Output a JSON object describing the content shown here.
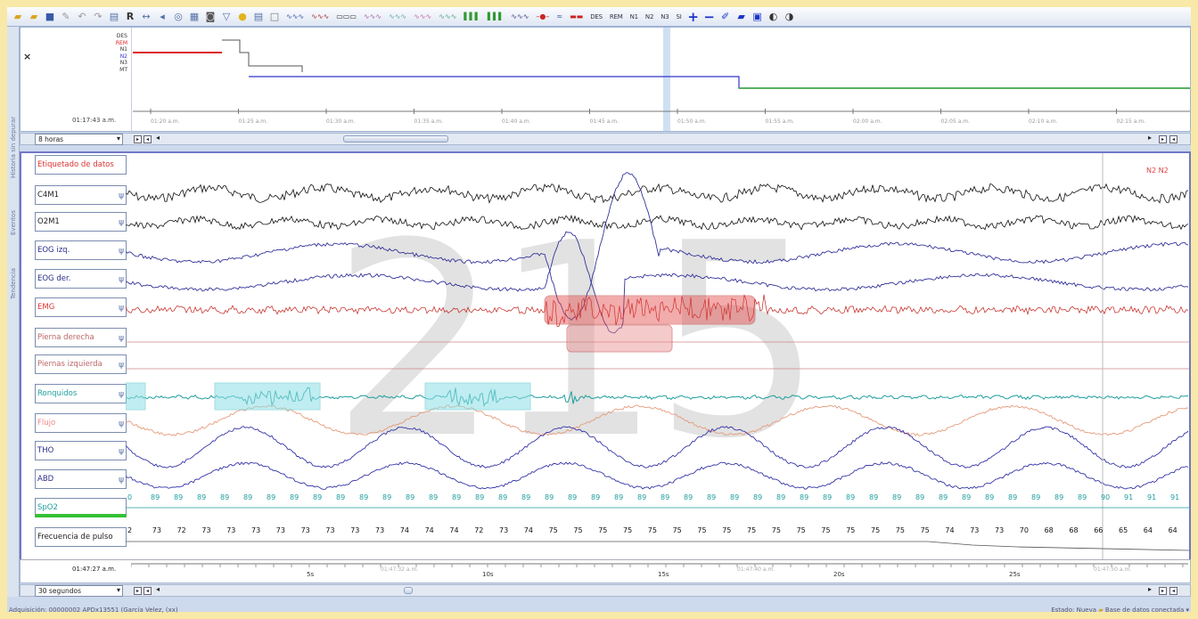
{
  "hypnogram": {
    "stage_labels": [
      "DES",
      "REM",
      "N1",
      "N2",
      "N3",
      "MT"
    ],
    "start_time": "01:17:43 a.m.",
    "times": [
      "01:20 a.m.",
      "01:25 a.m.",
      "01:30 a.m.",
      "01:35 a.m.",
      "01:40 a.m.",
      "01:45 a.m.",
      "01:50 a.m.",
      "01:55 a.m.",
      "02:00 a.m.",
      "02:05 a.m.",
      "02:10 a.m.",
      "02:15 a.m."
    ],
    "zoom_select": "8 horas"
  },
  "sidetabs": [
    "Historia sin depurar",
    "Eventos",
    "Tendencia"
  ],
  "channels": [
    "Etiquetado de datos",
    "C4M1",
    "O2M1",
    "EOG izq.",
    "EOG der.",
    "EMG",
    "Pierna derecha",
    "Piernas izquierda",
    "Ronquidos",
    "Flujo",
    "THO",
    "ABD",
    "SpO2",
    "Frecuencia de pulso"
  ],
  "colors": {
    "accent": "#6f78c8",
    "emg": "#c2211b",
    "snore": "#1f9e9e"
  },
  "epoch_number": "215",
  "annotation": "N2 N2",
  "spo2_values": [
    "0",
    "89",
    "89",
    "89",
    "89",
    "89",
    "89",
    "89",
    "89",
    "89",
    "89",
    "89",
    "89",
    "89",
    "89",
    "89",
    "89",
    "89",
    "89",
    "89",
    "89",
    "89",
    "89",
    "89",
    "89",
    "89",
    "89",
    "89",
    "89",
    "89",
    "89",
    "89",
    "89",
    "89",
    "89",
    "89",
    "89",
    "89",
    "89",
    "89",
    "89",
    "89",
    "90",
    "91",
    "91",
    "91"
  ],
  "pulse_values": [
    "2",
    "73",
    "72",
    "73",
    "73",
    "73",
    "73",
    "73",
    "73",
    "73",
    "73",
    "74",
    "74",
    "74",
    "72",
    "73",
    "74",
    "75",
    "75",
    "75",
    "75",
    "75",
    "75",
    "75",
    "75",
    "75",
    "75",
    "75",
    "75",
    "75",
    "75",
    "75",
    "75",
    "74",
    "73",
    "73",
    "70",
    "68",
    "68",
    "66",
    "65",
    "64",
    "64"
  ],
  "bottom": {
    "start_time": "01:47:27 a.m.",
    "zoom_select": "30 segundos",
    "ticks": [
      "5s",
      "10s",
      "15s",
      "20s",
      "25s"
    ],
    "time_marks": [
      "01:47:32 a.m.",
      "01:47:40 a.m.",
      "01:47:50 a.m."
    ]
  },
  "status": {
    "left": "Adquisición: 00000002 APDx13551 (García Velez, (xx)",
    "state": "Estado: Nueva",
    "db": "Base de datos conectada"
  },
  "toolbar": {
    "texts": [
      "DES",
      "REM",
      "N1",
      "N2",
      "N3",
      "SI"
    ]
  }
}
